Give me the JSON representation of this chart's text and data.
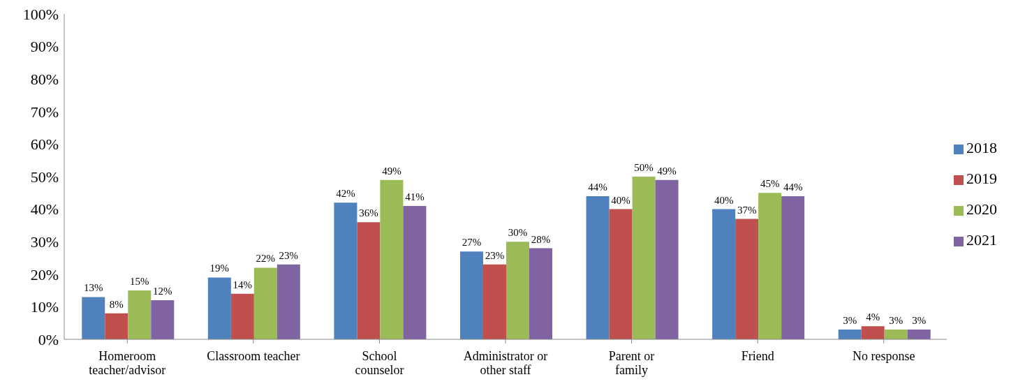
{
  "chart_data": {
    "type": "bar",
    "categories": [
      "Homeroom\nteacher/advisor",
      "Classroom teacher",
      "School\ncounselor",
      "Administrator or\nother staff",
      "Parent or\nfamily",
      "Friend",
      "No response"
    ],
    "series": [
      {
        "name": "2018",
        "color": "#4f81bd",
        "values": [
          13,
          19,
          42,
          27,
          44,
          40,
          3
        ],
        "value_labels": [
          "13%",
          "19%",
          "42%",
          "27%",
          "44%",
          "40%",
          "3%"
        ]
      },
      {
        "name": "2019",
        "color": "#c0504d",
        "values": [
          8,
          14,
          36,
          23,
          40,
          37,
          4
        ],
        "value_labels": [
          "8%",
          "14%",
          "36%",
          "23%",
          "40%",
          "37%",
          "4%"
        ]
      },
      {
        "name": "2020",
        "color": "#9bbb59",
        "values": [
          15,
          22,
          49,
          30,
          50,
          45,
          3
        ],
        "value_labels": [
          "15%",
          "22%",
          "49%",
          "30%",
          "50%",
          "45%",
          "3%"
        ]
      },
      {
        "name": "2021",
        "color": "#8064a2",
        "values": [
          12,
          23,
          41,
          28,
          49,
          44,
          3
        ],
        "value_labels": [
          "12%",
          "23%",
          "41%",
          "28%",
          "49%",
          "44%",
          "3%"
        ]
      }
    ],
    "ylim": [
      0,
      100
    ],
    "yticks": [
      {
        "value": 0,
        "label": "0%"
      },
      {
        "value": 10,
        "label": "10%"
      },
      {
        "value": 20,
        "label": "20%"
      },
      {
        "value": 30,
        "label": "30%"
      },
      {
        "value": 40,
        "label": "40%"
      },
      {
        "value": 50,
        "label": "50%"
      },
      {
        "value": 60,
        "label": "60%"
      },
      {
        "value": 70,
        "label": "70%"
      },
      {
        "value": 80,
        "label": "80%"
      },
      {
        "value": 90,
        "label": "90%"
      },
      {
        "value": 100,
        "label": "100%"
      }
    ],
    "grid": false,
    "legend": "right"
  }
}
